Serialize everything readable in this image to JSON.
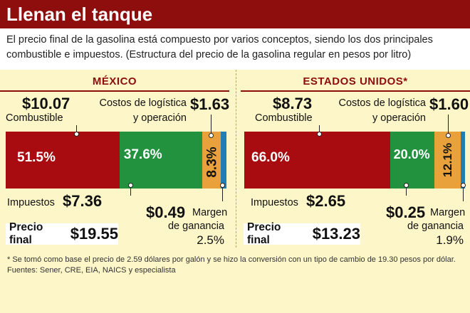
{
  "title": "Llenan el tanque",
  "intro": "El precio final de la gasolina está compuesto por varios conceptos, siendo los dos principales combustible e impuestos. (Estructura del precio de la gasolina regular en pesos por litro)",
  "colors": {
    "combustible": "#a90c10",
    "impuestos": "#22923f",
    "logistica": "#e9a23b",
    "margen": "#1f7fb4",
    "title_bg": "#8e0d0d",
    "page_bg": "#fdf6c8"
  },
  "chart_data": [
    {
      "type": "bar",
      "orientation": "horizontal-stacked",
      "title": "MÉXICO",
      "unit": "pesos por litro",
      "series": [
        {
          "name": "Combustible",
          "value": 10.07,
          "value_label": "$10.07",
          "percent_label": "51.5%",
          "percent": 51.5
        },
        {
          "name": "Impuestos",
          "value": 7.36,
          "value_label": "$7.36",
          "percent_label": "37.6%",
          "percent": 37.6
        },
        {
          "name": "Costos de logística y operación",
          "value": 1.63,
          "value_label": "$1.63",
          "percent_label": "8.3%",
          "percent": 8.3
        },
        {
          "name": "Margen de ganancia",
          "value": 0.49,
          "value_label": "$0.49",
          "percent_label": "2.5%",
          "percent": 2.5
        }
      ],
      "final_label": "Precio final",
      "final_value": "$19.55"
    },
    {
      "type": "bar",
      "orientation": "horizontal-stacked",
      "title": "ESTADOS UNIDOS*",
      "unit": "pesos por litro",
      "series": [
        {
          "name": "Combustible",
          "value": 8.73,
          "value_label": "$8.73",
          "percent_label": "66.0%",
          "percent": 66.0
        },
        {
          "name": "Impuestos",
          "value": 2.65,
          "value_label": "$2.65",
          "percent_label": "20.0%",
          "percent": 20.0
        },
        {
          "name": "Costos de logística y operación",
          "value": 1.6,
          "value_label": "$1.60",
          "percent_label": "12.1%",
          "percent": 12.1
        },
        {
          "name": "Margen de ganancia",
          "value": 0.25,
          "value_label": "$0.25",
          "percent_label": "1.9%",
          "percent": 1.9
        }
      ],
      "final_label": "Precio final",
      "final_value": "$13.23"
    }
  ],
  "labels": {
    "combustible": "Combustible",
    "impuestos": "Impuestos",
    "logistica_line1": "Costos de logística",
    "logistica_line2": "y operación",
    "margen_line1": "Margen",
    "margen_line2": "de ganancia"
  },
  "footnotes": {
    "note": "* Se tomó como base el precio de 2.59 dólares por galón y se hizo la conversión con un tipo de cambio de 19.30 pesos por dólar.",
    "sources": "Fuentes: Sener, CRE, EIA, NAICS y especialista"
  }
}
